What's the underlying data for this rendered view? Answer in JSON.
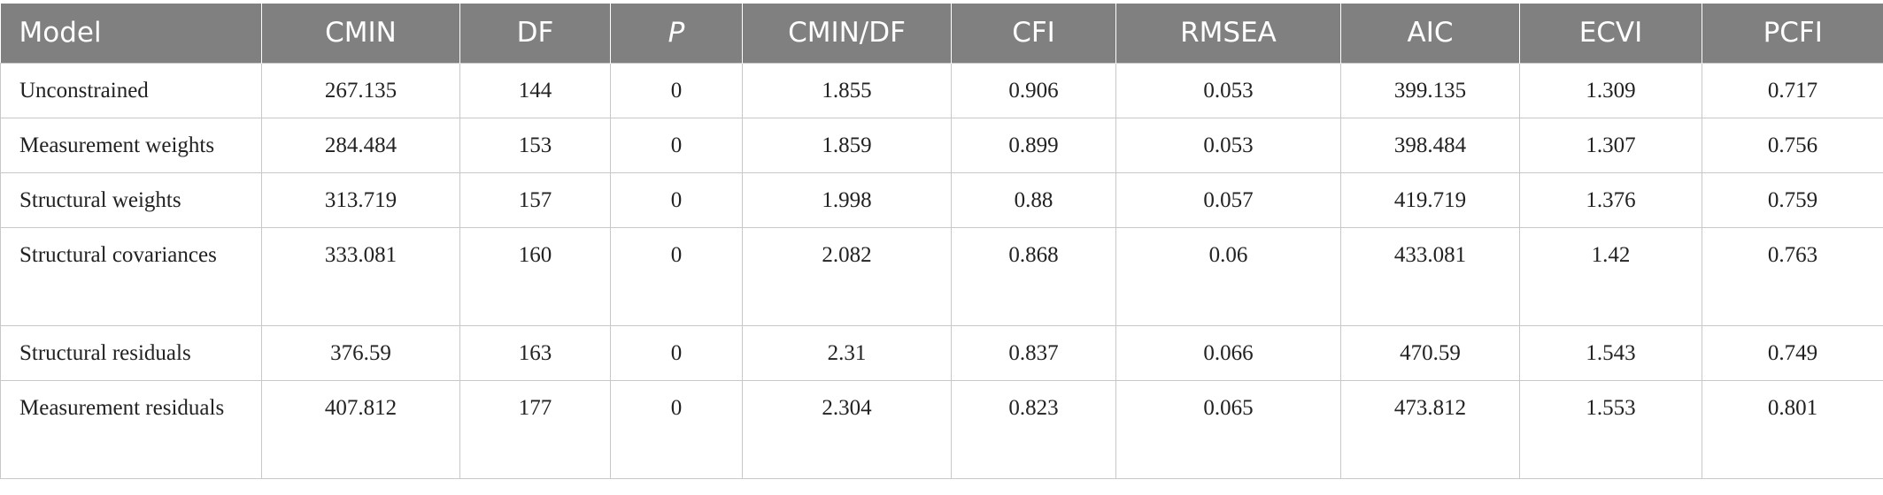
{
  "table": {
    "headers": [
      "Model",
      "CMIN",
      "DF",
      "P",
      "CMIN/DF",
      "CFI",
      "RMSEA",
      "AIC",
      "ECVI",
      "PCFI"
    ],
    "rows": [
      {
        "model": "Unconstrained",
        "cmin": "267.135",
        "df": "144",
        "p": "0",
        "cmin_df": "1.855",
        "cfi": "0.906",
        "rmsea": "0.053",
        "aic": "399.135",
        "ecvi": "1.309",
        "pcfi": "0.717"
      },
      {
        "model": "Measurement weights",
        "cmin": "284.484",
        "df": "153",
        "p": "0",
        "cmin_df": "1.859",
        "cfi": "0.899",
        "rmsea": "0.053",
        "aic": "398.484",
        "ecvi": "1.307",
        "pcfi": "0.756"
      },
      {
        "model": "Structural weights",
        "cmin": "313.719",
        "df": "157",
        "p": "0",
        "cmin_df": "1.998",
        "cfi": "0.88",
        "rmsea": "0.057",
        "aic": "419.719",
        "ecvi": "1.376",
        "pcfi": "0.759"
      },
      {
        "model": "Structural covariances",
        "cmin": "333.081",
        "df": "160",
        "p": "0",
        "cmin_df": "2.082",
        "cfi": "0.868",
        "rmsea": "0.06",
        "aic": "433.081",
        "ecvi": "1.42",
        "pcfi": "0.763"
      },
      {
        "model": "Structural residuals",
        "cmin": "376.59",
        "df": "163",
        "p": "0",
        "cmin_df": "2.31",
        "cfi": "0.837",
        "rmsea": "0.066",
        "aic": "470.59",
        "ecvi": "1.543",
        "pcfi": "0.749"
      },
      {
        "model": "Measurement residuals",
        "cmin": "407.812",
        "df": "177",
        "p": "0",
        "cmin_df": "2.304",
        "cfi": "0.823",
        "rmsea": "0.065",
        "aic": "473.812",
        "ecvi": "1.553",
        "pcfi": "0.801"
      }
    ]
  },
  "colors": {
    "header_bg": "#808080",
    "header_text": "#ffffff",
    "grid_line": "#c8c8c8",
    "body_text": "#222222"
  }
}
